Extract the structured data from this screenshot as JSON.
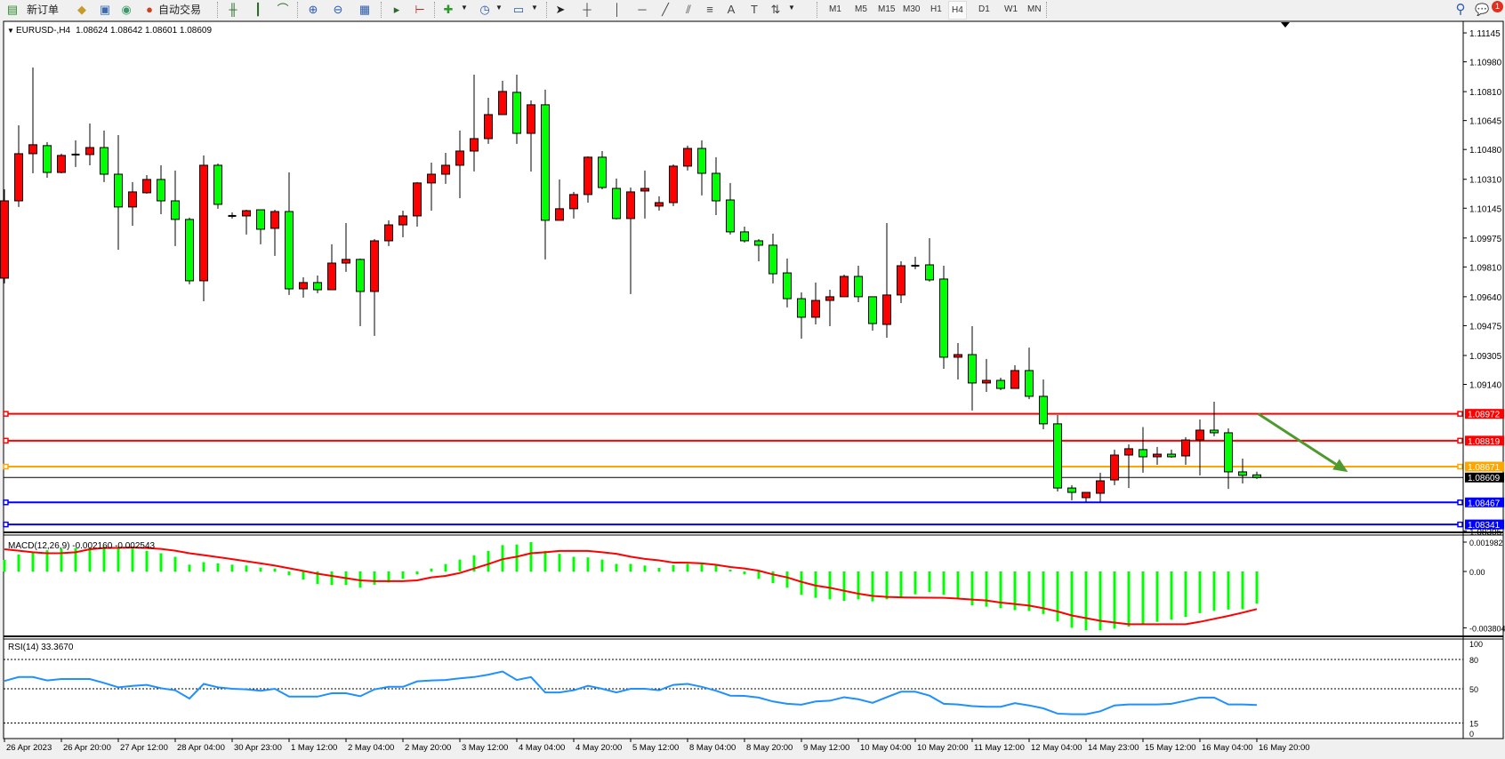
{
  "toolbar": {
    "new_order_label": "新订单",
    "auto_trading_label": "自动交易",
    "icons": [
      "new-order-icon",
      "metaeditor-icon",
      "history-center-icon",
      "signals-icon",
      "auto-trading-icon",
      "bar-chart-icon",
      "candlestick-chart-icon",
      "line-chart-icon",
      "zoom-in-icon",
      "zoom-out-icon",
      "tile-windows-icon",
      "auto-scroll-icon",
      "chart-shift-icon",
      "indicators-icon",
      "periods-icon",
      "templates-icon",
      "cursor-icon",
      "crosshair-icon",
      "vertical-line-icon",
      "horizontal-line-icon",
      "trendline-icon",
      "equidistant-channel-icon",
      "fibonacci-icon",
      "text-icon",
      "text-label-icon",
      "arrows-icon",
      "search-icon",
      "notification-icon"
    ],
    "timeframes": [
      "M1",
      "M5",
      "M15",
      "M30",
      "H1",
      "H4",
      "D1",
      "W1",
      "MN"
    ],
    "active_timeframe": "H4",
    "notification_count": "1"
  },
  "chart_header": {
    "symbol": "EURUSD-,H4",
    "ohlc": "1.08624 1.08642 1.08601 1.08609"
  },
  "macd_header": {
    "label": "MACD(12,26,9) -0.002160 -0.002543"
  },
  "rsi_header": {
    "label": "RSI(14) 33.3670"
  },
  "chart_data": {
    "type": "candlestick",
    "symbol": "EURUSD-",
    "timeframe": "H4",
    "colors": {
      "bull_body": "#ff0000",
      "bear_body": "#00ff00",
      "outline": "#000000",
      "macd_histogram": "#00ff00",
      "macd_signal": "#ff0000",
      "rsi_line": "#1e90ff",
      "arrow": "#4f9a2f"
    },
    "ylim": [
      1.08301,
      1.11211
    ],
    "price_ticks": [
      "1.11145",
      "1.10980",
      "1.10810",
      "1.10645",
      "1.10480",
      "1.10310",
      "1.10145",
      "1.09975",
      "1.09810",
      "1.09640",
      "1.09475",
      "1.09305",
      "1.09140",
      "1.08305"
    ],
    "time_labels": [
      "26 Apr 2023",
      "26 Apr 20:00",
      "27 Apr 12:00",
      "28 Apr 04:00",
      "30 Apr 23:00",
      "1 May 12:00",
      "2 May 04:00",
      "2 May 20:00",
      "3 May 12:00",
      "4 May 04:00",
      "4 May 20:00",
      "5 May 12:00",
      "8 May 04:00",
      "8 May 20:00",
      "9 May 12:00",
      "10 May 04:00",
      "10 May 20:00",
      "11 May 12:00",
      "12 May 04:00",
      "14 May 23:00",
      "15 May 12:00",
      "16 May 04:00",
      "16 May 20:00"
    ],
    "time_label_every_n_bars": 4,
    "candles_ohlc": [
      [
        1.09746,
        1.10253,
        1.09716,
        1.10187
      ],
      [
        1.10187,
        1.10618,
        1.10152,
        1.10456
      ],
      [
        1.10456,
        1.10948,
        1.10344,
        1.10507
      ],
      [
        1.10502,
        1.10522,
        1.10319,
        1.10349
      ],
      [
        1.10349,
        1.10456,
        1.10344,
        1.10446
      ],
      [
        1.10451,
        1.10532,
        1.1038,
        1.10451
      ],
      [
        1.10451,
        1.10628,
        1.1039,
        1.10491
      ],
      [
        1.10491,
        1.10588,
        1.10294,
        1.10339
      ],
      [
        1.10339,
        1.10562,
        1.09908,
        1.10152
      ],
      [
        1.10152,
        1.10294,
        1.10045,
        1.10238
      ],
      [
        1.10233,
        1.10334,
        1.10228,
        1.10309
      ],
      [
        1.10309,
        1.1039,
        1.10111,
        1.10187
      ],
      [
        1.10187,
        1.1036,
        1.09929,
        1.10081
      ],
      [
        1.10081,
        1.10091,
        1.09711,
        1.09731
      ],
      [
        1.09731,
        1.10446,
        1.09614,
        1.1039
      ],
      [
        1.1039,
        1.104,
        1.10142,
        1.10167
      ],
      [
        1.10101,
        1.10121,
        1.10086,
        1.10101
      ],
      [
        1.10101,
        1.10136,
        1.09995,
        1.10131
      ],
      [
        1.10136,
        1.10136,
        1.09939,
        1.10025
      ],
      [
        1.1003,
        1.10136,
        1.09873,
        1.10126
      ],
      [
        1.10126,
        1.10349,
        1.0965,
        1.09685
      ],
      [
        1.09685,
        1.09751,
        1.09635,
        1.09721
      ],
      [
        1.09721,
        1.09761,
        1.0966,
        1.0968
      ],
      [
        1.0968,
        1.09939,
        1.0968,
        1.09832
      ],
      [
        1.09832,
        1.1006,
        1.09782,
        1.09853
      ],
      [
        1.09853,
        1.09858,
        1.09472,
        1.0967
      ],
      [
        1.0967,
        1.09969,
        1.09417,
        1.09959
      ],
      [
        1.09959,
        1.10076,
        1.09929,
        1.1005
      ],
      [
        1.1005,
        1.10131,
        1.09979,
        1.10101
      ],
      [
        1.10101,
        1.10294,
        1.1004,
        1.10289
      ],
      [
        1.10289,
        1.10405,
        1.10131,
        1.10339
      ],
      [
        1.10339,
        1.10461,
        1.10284,
        1.1039
      ],
      [
        1.1039,
        1.10588,
        1.10202,
        1.10471
      ],
      [
        1.10471,
        1.10907,
        1.10355,
        1.10542
      ],
      [
        1.10542,
        1.10775,
        1.10512,
        1.10679
      ],
      [
        1.10679,
        1.10872,
        1.10679,
        1.10811
      ],
      [
        1.10806,
        1.10907,
        1.10512,
        1.10572
      ],
      [
        1.10572,
        1.1076,
        1.10354,
        1.10735
      ],
      [
        1.10735,
        1.10821,
        1.09853,
        1.10076
      ],
      [
        1.10076,
        1.10309,
        1.10076,
        1.10142
      ],
      [
        1.10142,
        1.10238,
        1.10086,
        1.10223
      ],
      [
        1.10223,
        1.10441,
        1.10177,
        1.10436
      ],
      [
        1.10436,
        1.10471,
        1.10253,
        1.10263
      ],
      [
        1.10258,
        1.10314,
        1.10081,
        1.10086
      ],
      [
        1.10086,
        1.10263,
        1.09655,
        1.10238
      ],
      [
        1.10243,
        1.1036,
        1.10086,
        1.10258
      ],
      [
        1.10157,
        1.10213,
        1.10131,
        1.10177
      ],
      [
        1.10177,
        1.10395,
        1.10157,
        1.10385
      ],
      [
        1.10385,
        1.10502,
        1.1036,
        1.10486
      ],
      [
        1.10486,
        1.10532,
        1.10218,
        1.10344
      ],
      [
        1.10344,
        1.10436,
        1.10106,
        1.10187
      ],
      [
        1.10192,
        1.10289,
        1.09995,
        1.1001
      ],
      [
        1.1001,
        1.1004,
        1.09949,
        1.09959
      ],
      [
        1.09959,
        1.09969,
        1.09842,
        1.09934
      ],
      [
        1.09934,
        1.1,
        1.09716,
        1.09771
      ],
      [
        1.09776,
        1.09858,
        1.09579,
        1.09629
      ],
      [
        1.09629,
        1.09665,
        1.09401,
        1.09523
      ],
      [
        1.09523,
        1.09721,
        1.09482,
        1.09619
      ],
      [
        1.09619,
        1.0968,
        1.09472,
        1.0964
      ],
      [
        1.0964,
        1.09766,
        1.0964,
        1.09756
      ],
      [
        1.09756,
        1.09817,
        1.09609,
        1.0964
      ],
      [
        1.0964,
        1.0964,
        1.09447,
        1.09487
      ],
      [
        1.09482,
        1.1006,
        1.09406,
        1.0965
      ],
      [
        1.0965,
        1.09842,
        1.09604,
        1.09817
      ],
      [
        1.09817,
        1.09868,
        1.09797,
        1.09817
      ],
      [
        1.09822,
        1.09974,
        1.09726,
        1.09736
      ],
      [
        1.09741,
        1.09817,
        1.09229,
        1.09295
      ],
      [
        1.09295,
        1.09376,
        1.09168,
        1.0931
      ],
      [
        1.0931,
        1.09472,
        1.08991,
        1.09148
      ],
      [
        1.09148,
        1.09285,
        1.09097,
        1.09163
      ],
      [
        1.09163,
        1.09178,
        1.09107,
        1.09117
      ],
      [
        1.09117,
        1.09249,
        1.09117,
        1.09219
      ],
      [
        1.09219,
        1.0935,
        1.09056,
        1.09072
      ],
      [
        1.09072,
        1.09168,
        1.08884,
        1.08915
      ],
      [
        1.08915,
        1.08965,
        1.08529,
        1.08549
      ],
      [
        1.08549,
        1.08565,
        1.08479,
        1.08524
      ],
      [
        1.08494,
        1.08524,
        1.08468,
        1.08524
      ],
      [
        1.08519,
        1.08636,
        1.08468,
        1.0859
      ],
      [
        1.08595,
        1.08768,
        1.08565,
        1.08737
      ],
      [
        1.08737,
        1.08798,
        1.08549,
        1.08773
      ],
      [
        1.08768,
        1.08897,
        1.08636,
        1.08727
      ],
      [
        1.08727,
        1.08783,
        1.08681,
        1.08742
      ],
      [
        1.08742,
        1.08768,
        1.08722,
        1.08727
      ],
      [
        1.08732,
        1.08839,
        1.08681,
        1.08823
      ],
      [
        1.08823,
        1.0894,
        1.08621,
        1.08879
      ],
      [
        1.08879,
        1.09041,
        1.08844,
        1.08864
      ],
      [
        1.08864,
        1.08889,
        1.08544,
        1.08641
      ],
      [
        1.08641,
        1.08717,
        1.08575,
        1.08621
      ],
      [
        1.08624,
        1.08642,
        1.08601,
        1.08609
      ]
    ],
    "horizontal_lines": [
      {
        "price": "1.08972",
        "color": "#ff0000",
        "label_text": "#ffffff"
      },
      {
        "price": "1.08819",
        "color": "#ff0000",
        "label_text": "#ffffff"
      },
      {
        "price": "1.08671",
        "color": "#ffa500",
        "label_text": "#ffffff"
      },
      {
        "price": "1.08609",
        "color": "#000000",
        "label_text": "#ffffff",
        "bid_line": true
      },
      {
        "price": "1.08467",
        "color": "#0000ff",
        "label_text": "#ffffff"
      },
      {
        "price": "1.08341",
        "color": "#0000ff",
        "label_text": "#ffffff"
      }
    ],
    "arrow": {
      "from": {
        "bar": 88.1,
        "price": 1.08972
      },
      "to": {
        "bar": 94.4,
        "price": 1.0864
      }
    },
    "macd": {
      "params": "12,26,9",
      "ylim": [
        -0.00432,
        0.0024
      ],
      "axis_labels": [
        "0.001982",
        "0.00",
        "-0.003804"
      ],
      "axis_values": [
        0.001982,
        0,
        -0.003804
      ],
      "histogram": [
        0.00078,
        0.00115,
        0.00135,
        0.00143,
        0.00154,
        0.00158,
        0.00162,
        0.00168,
        0.00158,
        0.00154,
        0.00139,
        0.00123,
        0.00099,
        0.00046,
        0.00063,
        0.00055,
        0.00046,
        0.0004,
        0.00026,
        0.0002,
        -0.00026,
        -0.00055,
        -0.00085,
        -0.00091,
        -0.00091,
        -0.00109,
        -0.00089,
        -0.00075,
        -0.0005,
        -0.0002,
        0.0002,
        0.0005,
        0.0008,
        0.00109,
        0.00139,
        0.00178,
        0.00182,
        0.00198,
        0.00139,
        0.00119,
        0.00099,
        0.00095,
        0.0008,
        0.00051,
        0.00051,
        0.0004,
        0.00024,
        0.00044,
        0.00051,
        0.00051,
        0.00044,
        0.00012,
        -0.0002,
        -0.0005,
        -0.00079,
        -0.00109,
        -0.00158,
        -0.00178,
        -0.00188,
        -0.00198,
        -0.00188,
        -0.00202,
        -0.00188,
        -0.00174,
        -0.00154,
        -0.00139,
        -0.00158,
        -0.00178,
        -0.00228,
        -0.00238,
        -0.00248,
        -0.00261,
        -0.00267,
        -0.00287,
        -0.00337,
        -0.0038,
        -0.00396,
        -0.00396,
        -0.00386,
        -0.00372,
        -0.00356,
        -0.0034,
        -0.00325,
        -0.00307,
        -0.00281,
        -0.00265,
        -0.00257,
        -0.00255,
        -0.00216
      ],
      "signal": [
        0.0015,
        0.0014,
        0.0013,
        0.00123,
        0.00124,
        0.0013,
        0.0015,
        0.00158,
        0.0016,
        0.00162,
        0.00158,
        0.00152,
        0.0014,
        0.00123,
        0.0011,
        0.00097,
        0.00083,
        0.00069,
        0.00055,
        0.0004,
        0.00022,
        4e-05,
        -0.00015,
        -0.0003,
        -0.00045,
        -0.0006,
        -0.00065,
        -0.00065,
        -0.00065,
        -0.0006,
        -0.0004,
        -0.0003,
        -0.0001,
        0.0002,
        0.0005,
        0.00083,
        0.001,
        0.00123,
        0.0013,
        0.00139,
        0.00139,
        0.00139,
        0.0013,
        0.00119,
        0.001,
        0.00085,
        0.00075,
        0.0006,
        0.00059,
        0.00055,
        0.00045,
        0.0003,
        0.0002,
        5e-05,
        -0.0002,
        -0.0004,
        -0.0007,
        -0.00095,
        -0.0011,
        -0.0013,
        -0.0015,
        -0.00165,
        -0.00172,
        -0.00175,
        -0.00176,
        -0.00177,
        -0.00178,
        -0.00183,
        -0.0019,
        -0.00196,
        -0.0021,
        -0.0022,
        -0.0023,
        -0.00248,
        -0.0027,
        -0.00297,
        -0.00315,
        -0.00333,
        -0.00345,
        -0.00356,
        -0.00356,
        -0.00356,
        -0.00356,
        -0.00356,
        -0.0034,
        -0.0032,
        -0.003,
        -0.00278,
        -0.00254
      ]
    },
    "rsi": {
      "period": 14,
      "ylim": [
        0,
        100
      ],
      "axis_labels": [
        "100",
        "80",
        "50",
        "15",
        "0"
      ],
      "axis_values": [
        100,
        80,
        50,
        15,
        0
      ],
      "levels": [
        80,
        50,
        15
      ],
      "values": [
        58,
        62,
        62,
        58.5,
        60,
        60,
        60,
        56,
        51.5,
        53,
        54,
        50.6,
        48.5,
        40,
        55,
        51.5,
        50,
        49.4,
        48,
        50,
        42,
        42,
        42,
        45.4,
        45.4,
        42.4,
        49.4,
        52,
        52,
        57.6,
        58.5,
        59,
        60.7,
        62,
        64.4,
        67.7,
        59,
        62,
        46.3,
        46.3,
        48.5,
        53,
        50,
        46.3,
        50,
        50,
        48.5,
        54,
        55,
        52,
        48,
        43,
        42.7,
        41,
        37,
        34.7,
        33.8,
        37,
        37.8,
        41.4,
        39.3,
        35.6,
        41.4,
        47,
        47,
        43,
        34.7,
        34,
        32.3,
        31.6,
        31.6,
        35.3,
        33,
        30,
        24.6,
        24,
        24,
        27,
        33,
        34,
        34,
        34,
        34.7,
        37.8,
        41,
        41,
        34,
        34,
        33.367
      ]
    }
  }
}
